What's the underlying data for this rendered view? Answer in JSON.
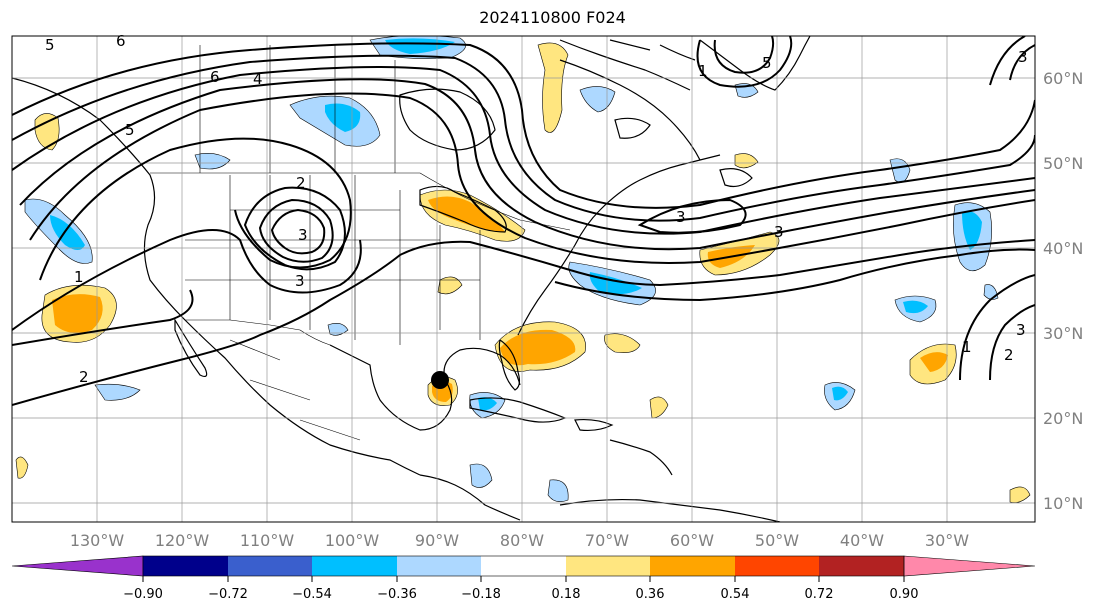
{
  "title": "2024110800 F024",
  "map": {
    "lon_labels": [
      "130°W",
      "120°W",
      "110°W",
      "100°W",
      "90°W",
      "80°W",
      "70°W",
      "60°W",
      "50°W",
      "40°W",
      "30°W"
    ],
    "lat_labels": [
      "60°N",
      "50°N",
      "40°N",
      "30°N",
      "20°N",
      "10°N"
    ],
    "contour_labels": [
      "5",
      "6",
      "6",
      "5",
      "5",
      "4",
      "2",
      "3",
      "3",
      "1",
      "2",
      "1",
      "3",
      "3",
      "2",
      "1",
      "3",
      "3"
    ],
    "marker": {
      "name": "storm-center-marker",
      "color": "#000000"
    }
  },
  "colorbar": {
    "tick_labels": [
      "−0.90",
      "−0.72",
      "−0.54",
      "−0.36",
      "−0.18",
      "0.18",
      "0.36",
      "0.54",
      "0.72",
      "0.90"
    ],
    "colors": [
      "#9932cc",
      "#00008b",
      "#3a5fcd",
      "#00bfff",
      "#add8ff",
      "#ffffff",
      "#ffe680",
      "#ffa500",
      "#ff4500",
      "#b22222",
      "#ff88aa"
    ]
  }
}
